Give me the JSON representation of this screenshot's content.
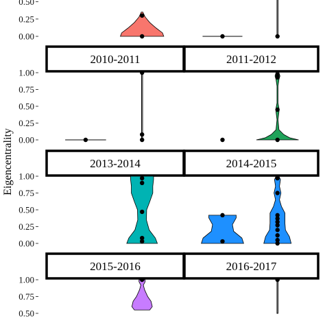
{
  "chart_data": {
    "type": "violin",
    "ylabel": "Eigencentrality",
    "ylim": [
      0,
      1
    ],
    "yticks": [
      "0.00",
      "0.25",
      "0.50",
      "0.75",
      "1.00"
    ],
    "colors": {
      "red": "#f8766d",
      "green": "#1fa35a",
      "teal": "#00b3b3",
      "blue": "#1e90ff",
      "purple": "#c77cff"
    },
    "panels": [
      {
        "label": "",
        "violins": [
          {
            "group": 2,
            "color": "red",
            "ymin": 0.0,
            "ymax": 0.35,
            "profile": [
              [
                0.0,
                0.85
              ],
              [
                0.05,
                0.8
              ],
              [
                0.12,
                0.55
              ],
              [
                0.2,
                0.3
              ],
              [
                0.28,
                0.12
              ],
              [
                0.35,
                0.03
              ]
            ],
            "points": [
              0.0,
              0.3
            ]
          }
        ]
      },
      {
        "label": "",
        "violins": [
          {
            "group": 1,
            "color": "red",
            "ymin": 0.0,
            "ymax": 0.0,
            "profile": [
              [
                0.0,
                0.8
              ]
            ],
            "points": [
              0.0
            ]
          },
          {
            "group": 2,
            "color": "red",
            "ymin": 0.0,
            "ymax": 1.0,
            "profile": [
              [
                0.0,
                0.02
              ],
              [
                1.0,
                0.02
              ]
            ],
            "points": [
              0.0
            ]
          }
        ]
      },
      {
        "label": "2010-2011",
        "violins": [
          {
            "group": 1,
            "color": "red",
            "ymin": 0.0,
            "ymax": 0.0,
            "profile": [
              [
                0.0,
                0.8
              ]
            ],
            "points": [
              0.0
            ]
          },
          {
            "group": 2,
            "color": "red",
            "ymin": 0.0,
            "ymax": 1.0,
            "profile": [
              [
                0.0,
                0.02
              ],
              [
                1.0,
                0.02
              ]
            ],
            "points": [
              0.0,
              0.08,
              1.0
            ]
          }
        ]
      },
      {
        "label": "2011-2012",
        "violins": [
          {
            "group": 1,
            "color": "green",
            "ymin": 0.0,
            "ymax": 0.0,
            "profile": [],
            "points": [
              0.0
            ]
          },
          {
            "group": 2,
            "color": "green",
            "ymin": 0.0,
            "ymax": 1.0,
            "profile": [
              [
                0.0,
                0.85
              ],
              [
                0.03,
                0.5
              ],
              [
                0.08,
                0.25
              ],
              [
                0.15,
                0.06
              ],
              [
                0.3,
                0.02
              ],
              [
                0.45,
                0.07
              ],
              [
                0.55,
                0.02
              ],
              [
                0.8,
                0.02
              ],
              [
                0.9,
                0.06
              ],
              [
                0.95,
                0.1
              ],
              [
                1.0,
                0.06
              ]
            ],
            "points": [
              0.0,
              0.45,
              0.93,
              0.97
            ]
          }
        ]
      },
      {
        "label": "2013-2014",
        "violins": [
          {
            "group": 2,
            "color": "teal",
            "ymin": 0.0,
            "ymax": 1.0,
            "profile": [
              [
                0.0,
                0.6
              ],
              [
                0.08,
                0.52
              ],
              [
                0.2,
                0.28
              ],
              [
                0.35,
                0.17
              ],
              [
                0.5,
                0.18
              ],
              [
                0.62,
                0.3
              ],
              [
                0.75,
                0.42
              ],
              [
                0.85,
                0.42
              ],
              [
                0.95,
                0.45
              ],
              [
                1.0,
                0.45
              ]
            ],
            "points": [
              0.03,
              0.08,
              0.47,
              0.9,
              0.97
            ]
          }
        ]
      },
      {
        "label": "2014-2015",
        "violins": [
          {
            "group": 1,
            "color": "blue",
            "ymin": 0.0,
            "ymax": 0.42,
            "profile": [
              [
                0.0,
                0.85
              ],
              [
                0.08,
                0.78
              ],
              [
                0.18,
                0.45
              ],
              [
                0.28,
                0.4
              ],
              [
                0.38,
                0.55
              ],
              [
                0.42,
                0.55
              ]
            ],
            "points": [
              0.03,
              0.42
            ]
          },
          {
            "group": 2,
            "color": "blue",
            "ymin": 0.0,
            "ymax": 1.0,
            "profile": [
              [
                0.0,
                0.55
              ],
              [
                0.1,
                0.48
              ],
              [
                0.2,
                0.32
              ],
              [
                0.3,
                0.3
              ],
              [
                0.45,
                0.3
              ],
              [
                0.55,
                0.16
              ],
              [
                0.65,
                0.08
              ],
              [
                0.75,
                0.14
              ],
              [
                0.85,
                0.08
              ],
              [
                0.95,
                0.12
              ],
              [
                1.0,
                0.06
              ]
            ],
            "points": [
              0.0,
              0.05,
              0.12,
              0.2,
              0.27,
              0.32,
              0.37,
              0.42,
              0.75,
              0.97
            ]
          }
        ]
      },
      {
        "label": "2015-2016",
        "violins": [
          {
            "group": 2,
            "color": "purple",
            "ymin": 0.55,
            "ymax": 1.0,
            "profile": [
              [
                0.55,
                0.3
              ],
              [
                0.6,
                0.4
              ],
              [
                0.68,
                0.35
              ],
              [
                0.75,
                0.22
              ],
              [
                0.85,
                0.1
              ],
              [
                0.92,
                0.05
              ],
              [
                0.97,
                0.12
              ],
              [
                1.0,
                0.12
              ]
            ],
            "points": [
              1.0
            ]
          }
        ]
      },
      {
        "label": "2016-2017",
        "violins": [
          {
            "group": 2,
            "color": "purple",
            "ymin": 0.5,
            "ymax": 1.0,
            "profile": [
              [
                0.5,
                0.02
              ],
              [
                1.0,
                0.02
              ]
            ],
            "points": [
              1.0
            ]
          }
        ]
      }
    ]
  }
}
